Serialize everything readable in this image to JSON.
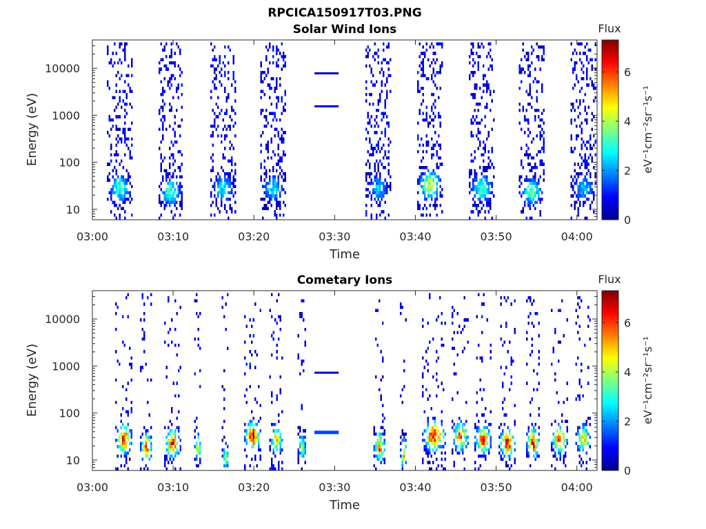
{
  "figure_title": "RPCICA150917T03.PNG",
  "chart_data": [
    {
      "type": "heatmap",
      "title": "Solar Wind Ions",
      "xlabel": "Time",
      "ylabel": "Energy (eV)",
      "x_ticks": [
        "03:00",
        "03:10",
        "03:20",
        "03:30",
        "03:40",
        "03:50",
        "04:00"
      ],
      "x_tick_minutes": [
        0,
        10,
        20,
        30,
        40,
        50,
        60
      ],
      "xlim_minutes": [
        0,
        62.5
      ],
      "y_scale": "log",
      "y_ticks": [
        "10",
        "100",
        "1000",
        "10000"
      ],
      "y_tick_values": [
        10,
        100,
        1000,
        10000
      ],
      "ylim": [
        6,
        40000
      ],
      "colorbar": {
        "label": "Flux",
        "unit": "eV⁻¹cm⁻²sr⁻¹s⁻¹",
        "ticks": [
          "0",
          "2",
          "4",
          "6"
        ],
        "range": [
          0,
          7.3
        ],
        "colormap": "jet"
      },
      "sweeps": [
        {
          "t_start": 1.8,
          "t_end": 4.8,
          "peak_energy": 30,
          "peak_flux": 3.5
        },
        {
          "t_start": 8.2,
          "t_end": 11.0,
          "peak_energy": 25,
          "peak_flux": 3.5
        },
        {
          "t_start": 14.6,
          "t_end": 17.6,
          "peak_energy": 30,
          "peak_flux": 2.8
        },
        {
          "t_start": 20.8,
          "t_end": 23.8,
          "peak_energy": 30,
          "peak_flux": 2.8
        },
        {
          "t_start": 33.8,
          "t_end": 36.8,
          "peak_energy": 30,
          "peak_flux": 2.5
        },
        {
          "t_start": 40.2,
          "t_end": 43.2,
          "peak_energy": 35,
          "peak_flux": 4.5
        },
        {
          "t_start": 46.6,
          "t_end": 49.6,
          "peak_energy": 30,
          "peak_flux": 3.5
        },
        {
          "t_start": 52.8,
          "t_end": 55.8,
          "peak_energy": 25,
          "peak_flux": 3.5
        },
        {
          "t_start": 59.2,
          "t_end": 62.4,
          "peak_energy": 30,
          "peak_flux": 2.5
        }
      ],
      "lines": [
        {
          "t_start": 27.5,
          "t_end": 30.5,
          "energy": 7800,
          "flux": 0.4
        },
        {
          "t_start": 27.5,
          "t_end": 30.5,
          "energy": 1550,
          "flux": 0.6
        }
      ]
    },
    {
      "type": "heatmap",
      "title": "Cometary Ions",
      "xlabel": "Time",
      "ylabel": "Energy (eV)",
      "x_ticks": [
        "03:00",
        "03:10",
        "03:20",
        "03:30",
        "03:40",
        "03:50",
        "04:00"
      ],
      "x_tick_minutes": [
        0,
        10,
        20,
        30,
        40,
        50,
        60
      ],
      "xlim_minutes": [
        0,
        62.5
      ],
      "y_scale": "log",
      "y_ticks": [
        "10",
        "100",
        "1000",
        "10000"
      ],
      "y_tick_values": [
        10,
        100,
        1000,
        10000
      ],
      "ylim": [
        6,
        40000
      ],
      "colorbar": {
        "label": "Flux",
        "unit": "eV⁻¹cm⁻²sr⁻¹s⁻¹",
        "ticks": [
          "0",
          "2",
          "4",
          "6"
        ],
        "range": [
          0,
          7.3
        ],
        "colormap": "jet"
      },
      "sweeps": [
        {
          "t_start": 2.8,
          "t_end": 4.8,
          "peak_energy": 30,
          "peak_flux": 6.5
        },
        {
          "t_start": 5.9,
          "t_end": 7.3,
          "peak_energy": 20,
          "peak_flux": 6.0
        },
        {
          "t_start": 8.9,
          "t_end": 10.9,
          "peak_energy": 25,
          "peak_flux": 6.3
        },
        {
          "t_start": 12.6,
          "t_end": 13.4,
          "peak_energy": 20,
          "peak_flux": 4.5
        },
        {
          "t_start": 16.0,
          "t_end": 16.8,
          "peak_energy": 12,
          "peak_flux": 4.0
        },
        {
          "t_start": 18.8,
          "t_end": 20.8,
          "peak_energy": 35,
          "peak_flux": 6.8
        },
        {
          "t_start": 21.9,
          "t_end": 23.5,
          "peak_energy": 30,
          "peak_flux": 5.0
        },
        {
          "t_start": 25.4,
          "t_end": 26.4,
          "peak_energy": 20,
          "peak_flux": 4.0
        },
        {
          "t_start": 34.8,
          "t_end": 36.2,
          "peak_energy": 20,
          "peak_flux": 5.8
        },
        {
          "t_start": 38.1,
          "t_end": 38.9,
          "peak_energy": 15,
          "peak_flux": 5.0
        },
        {
          "t_start": 40.8,
          "t_end": 43.6,
          "peak_energy": 35,
          "peak_flux": 6.7
        },
        {
          "t_start": 44.5,
          "t_end": 46.5,
          "peak_energy": 35,
          "peak_flux": 5.8
        },
        {
          "t_start": 47.3,
          "t_end": 49.3,
          "peak_energy": 30,
          "peak_flux": 6.3
        },
        {
          "t_start": 50.3,
          "t_end": 52.3,
          "peak_energy": 25,
          "peak_flux": 6.5
        },
        {
          "t_start": 53.7,
          "t_end": 55.3,
          "peak_energy": 25,
          "peak_flux": 6.5
        },
        {
          "t_start": 56.8,
          "t_end": 58.8,
          "peak_energy": 30,
          "peak_flux": 6.0
        },
        {
          "t_start": 59.8,
          "t_end": 61.6,
          "peak_energy": 30,
          "peak_flux": 5.0
        }
      ],
      "lines": [
        {
          "t_start": 27.5,
          "t_end": 30.5,
          "energy": 720,
          "flux": 0.6
        },
        {
          "t_start": 27.5,
          "t_end": 30.5,
          "energy": 40,
          "flux": 1.4
        }
      ]
    }
  ]
}
